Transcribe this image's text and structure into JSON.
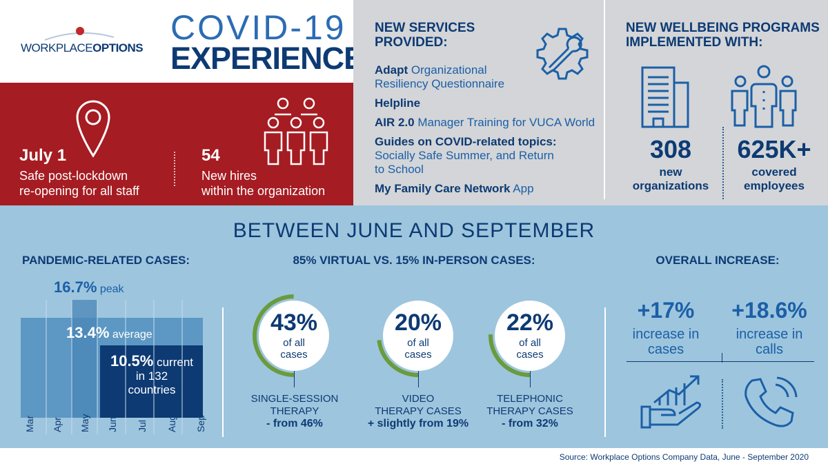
{
  "logo": {
    "text_light": "WORKPLACE",
    "text_bold": "OPTIONS"
  },
  "title": {
    "line1": "COVID-19",
    "line2": "EXPERIENCE"
  },
  "red": {
    "stat1": {
      "value": "July 1",
      "line1": "Safe post-lockdown",
      "line2": "re-opening for all staff"
    },
    "stat2": {
      "value": "54",
      "line1": "New hires",
      "line2": "within the organization"
    }
  },
  "services": {
    "heading1": "NEW SERVICES",
    "heading2": "PROVIDED:",
    "items": [
      {
        "bold": "Adapt",
        "rest": " Organizational",
        "line2": "Resiliency Questionnaire"
      },
      {
        "bold": "Helpline",
        "rest": "",
        "line2": ""
      },
      {
        "bold": "AIR 2.0",
        "rest": " Manager Training for VUCA World",
        "line2": ""
      },
      {
        "bold": "Guides on COVID-related topics:",
        "rest": "",
        "line2": "Socially Safe Summer, and Return",
        "line3": "to School"
      },
      {
        "bold": "My Family Care Network",
        "rest": " App",
        "line2": ""
      }
    ]
  },
  "wellbeing": {
    "heading1": "NEW WELLBEING PROGRAMS",
    "heading2": "IMPLEMENTED WITH:",
    "stat1": {
      "value": "308",
      "line1": "new",
      "line2": "organizations"
    },
    "stat2": {
      "value": "625K+",
      "line1": "covered",
      "line2": "employees"
    }
  },
  "between": "BETWEEN JUNE AND SEPTEMBER",
  "pandemic": {
    "heading": "PANDEMIC-RELATED CASES:",
    "peak_value": "16.7%",
    "peak_label": "peak",
    "avg_value": "13.4%",
    "avg_label": "average",
    "cur_value": "10.5%",
    "cur_label": "current",
    "cur_line2": "in 132",
    "cur_line3": "countries",
    "months": [
      "Mar",
      "Apr",
      "May",
      "Jun",
      "Jul",
      "Aug",
      "Sep"
    ]
  },
  "virtual": {
    "heading": "85% VIRTUAL VS. 15% IN-PERSON CASES:",
    "circles": [
      {
        "value": "43%",
        "sub1": "of all",
        "sub2": "cases",
        "label1": "SINGLE-SESSION",
        "label2": "THERAPY",
        "change": "- from 46%"
      },
      {
        "value": "20%",
        "sub1": "of all",
        "sub2": "cases",
        "label1": "VIDEO",
        "label2": "THERAPY CASES",
        "change": "+ slightly from 19%"
      },
      {
        "value": "22%",
        "sub1": "of all",
        "sub2": "cases",
        "label1": "TELEPHONIC",
        "label2": "THERAPY CASES",
        "change": "- from 32%"
      }
    ]
  },
  "increase": {
    "heading": "OVERALL INCREASE:",
    "stat1": {
      "value": "+17%",
      "line1": "increase in",
      "line2": "cases"
    },
    "stat2": {
      "value": "+18.6%",
      "line1": "increase in",
      "line2": "calls"
    }
  },
  "source": "Source: Workplace Options Company Data, June - September 2020",
  "colors": {
    "navy": "#0d3a73",
    "red": "#a51c22",
    "light_blue": "#9dc5de",
    "grey": "#d3d5d8",
    "green": "#6a9b3c"
  }
}
